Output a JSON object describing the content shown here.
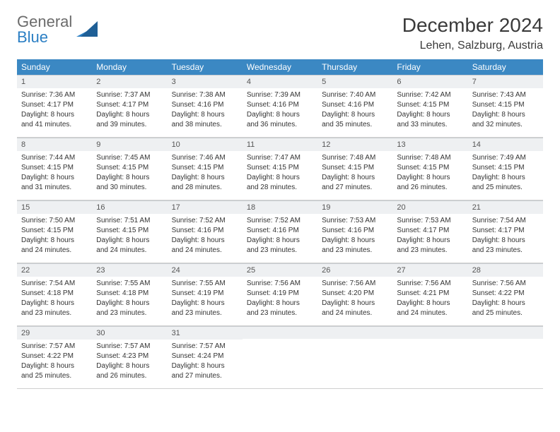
{
  "brand": {
    "line1": "General",
    "line2": "Blue"
  },
  "title": "December 2024",
  "location": "Lehen, Salzburg, Austria",
  "colors": {
    "header_bg": "#3b88c3",
    "header_text": "#ffffff",
    "daynum_bg": "#eef0f2",
    "text": "#333333",
    "logo_gray": "#6b6b6b",
    "logo_blue": "#2b7fc4",
    "rule": "#c9cdd1"
  },
  "dayHeaders": [
    "Sunday",
    "Monday",
    "Tuesday",
    "Wednesday",
    "Thursday",
    "Friday",
    "Saturday"
  ],
  "weeks": [
    [
      {
        "n": "1",
        "sunrise": "Sunrise: 7:36 AM",
        "sunset": "Sunset: 4:17 PM",
        "day1": "Daylight: 8 hours",
        "day2": "and 41 minutes."
      },
      {
        "n": "2",
        "sunrise": "Sunrise: 7:37 AM",
        "sunset": "Sunset: 4:17 PM",
        "day1": "Daylight: 8 hours",
        "day2": "and 39 minutes."
      },
      {
        "n": "3",
        "sunrise": "Sunrise: 7:38 AM",
        "sunset": "Sunset: 4:16 PM",
        "day1": "Daylight: 8 hours",
        "day2": "and 38 minutes."
      },
      {
        "n": "4",
        "sunrise": "Sunrise: 7:39 AM",
        "sunset": "Sunset: 4:16 PM",
        "day1": "Daylight: 8 hours",
        "day2": "and 36 minutes."
      },
      {
        "n": "5",
        "sunrise": "Sunrise: 7:40 AM",
        "sunset": "Sunset: 4:16 PM",
        "day1": "Daylight: 8 hours",
        "day2": "and 35 minutes."
      },
      {
        "n": "6",
        "sunrise": "Sunrise: 7:42 AM",
        "sunset": "Sunset: 4:15 PM",
        "day1": "Daylight: 8 hours",
        "day2": "and 33 minutes."
      },
      {
        "n": "7",
        "sunrise": "Sunrise: 7:43 AM",
        "sunset": "Sunset: 4:15 PM",
        "day1": "Daylight: 8 hours",
        "day2": "and 32 minutes."
      }
    ],
    [
      {
        "n": "8",
        "sunrise": "Sunrise: 7:44 AM",
        "sunset": "Sunset: 4:15 PM",
        "day1": "Daylight: 8 hours",
        "day2": "and 31 minutes."
      },
      {
        "n": "9",
        "sunrise": "Sunrise: 7:45 AM",
        "sunset": "Sunset: 4:15 PM",
        "day1": "Daylight: 8 hours",
        "day2": "and 30 minutes."
      },
      {
        "n": "10",
        "sunrise": "Sunrise: 7:46 AM",
        "sunset": "Sunset: 4:15 PM",
        "day1": "Daylight: 8 hours",
        "day2": "and 28 minutes."
      },
      {
        "n": "11",
        "sunrise": "Sunrise: 7:47 AM",
        "sunset": "Sunset: 4:15 PM",
        "day1": "Daylight: 8 hours",
        "day2": "and 28 minutes."
      },
      {
        "n": "12",
        "sunrise": "Sunrise: 7:48 AM",
        "sunset": "Sunset: 4:15 PM",
        "day1": "Daylight: 8 hours",
        "day2": "and 27 minutes."
      },
      {
        "n": "13",
        "sunrise": "Sunrise: 7:48 AM",
        "sunset": "Sunset: 4:15 PM",
        "day1": "Daylight: 8 hours",
        "day2": "and 26 minutes."
      },
      {
        "n": "14",
        "sunrise": "Sunrise: 7:49 AM",
        "sunset": "Sunset: 4:15 PM",
        "day1": "Daylight: 8 hours",
        "day2": "and 25 minutes."
      }
    ],
    [
      {
        "n": "15",
        "sunrise": "Sunrise: 7:50 AM",
        "sunset": "Sunset: 4:15 PM",
        "day1": "Daylight: 8 hours",
        "day2": "and 24 minutes."
      },
      {
        "n": "16",
        "sunrise": "Sunrise: 7:51 AM",
        "sunset": "Sunset: 4:15 PM",
        "day1": "Daylight: 8 hours",
        "day2": "and 24 minutes."
      },
      {
        "n": "17",
        "sunrise": "Sunrise: 7:52 AM",
        "sunset": "Sunset: 4:16 PM",
        "day1": "Daylight: 8 hours",
        "day2": "and 24 minutes."
      },
      {
        "n": "18",
        "sunrise": "Sunrise: 7:52 AM",
        "sunset": "Sunset: 4:16 PM",
        "day1": "Daylight: 8 hours",
        "day2": "and 23 minutes."
      },
      {
        "n": "19",
        "sunrise": "Sunrise: 7:53 AM",
        "sunset": "Sunset: 4:16 PM",
        "day1": "Daylight: 8 hours",
        "day2": "and 23 minutes."
      },
      {
        "n": "20",
        "sunrise": "Sunrise: 7:53 AM",
        "sunset": "Sunset: 4:17 PM",
        "day1": "Daylight: 8 hours",
        "day2": "and 23 minutes."
      },
      {
        "n": "21",
        "sunrise": "Sunrise: 7:54 AM",
        "sunset": "Sunset: 4:17 PM",
        "day1": "Daylight: 8 hours",
        "day2": "and 23 minutes."
      }
    ],
    [
      {
        "n": "22",
        "sunrise": "Sunrise: 7:54 AM",
        "sunset": "Sunset: 4:18 PM",
        "day1": "Daylight: 8 hours",
        "day2": "and 23 minutes."
      },
      {
        "n": "23",
        "sunrise": "Sunrise: 7:55 AM",
        "sunset": "Sunset: 4:18 PM",
        "day1": "Daylight: 8 hours",
        "day2": "and 23 minutes."
      },
      {
        "n": "24",
        "sunrise": "Sunrise: 7:55 AM",
        "sunset": "Sunset: 4:19 PM",
        "day1": "Daylight: 8 hours",
        "day2": "and 23 minutes."
      },
      {
        "n": "25",
        "sunrise": "Sunrise: 7:56 AM",
        "sunset": "Sunset: 4:19 PM",
        "day1": "Daylight: 8 hours",
        "day2": "and 23 minutes."
      },
      {
        "n": "26",
        "sunrise": "Sunrise: 7:56 AM",
        "sunset": "Sunset: 4:20 PM",
        "day1": "Daylight: 8 hours",
        "day2": "and 24 minutes."
      },
      {
        "n": "27",
        "sunrise": "Sunrise: 7:56 AM",
        "sunset": "Sunset: 4:21 PM",
        "day1": "Daylight: 8 hours",
        "day2": "and 24 minutes."
      },
      {
        "n": "28",
        "sunrise": "Sunrise: 7:56 AM",
        "sunset": "Sunset: 4:22 PM",
        "day1": "Daylight: 8 hours",
        "day2": "and 25 minutes."
      }
    ],
    [
      {
        "n": "29",
        "sunrise": "Sunrise: 7:57 AM",
        "sunset": "Sunset: 4:22 PM",
        "day1": "Daylight: 8 hours",
        "day2": "and 25 minutes."
      },
      {
        "n": "30",
        "sunrise": "Sunrise: 7:57 AM",
        "sunset": "Sunset: 4:23 PM",
        "day1": "Daylight: 8 hours",
        "day2": "and 26 minutes."
      },
      {
        "n": "31",
        "sunrise": "Sunrise: 7:57 AM",
        "sunset": "Sunset: 4:24 PM",
        "day1": "Daylight: 8 hours",
        "day2": "and 27 minutes."
      },
      {
        "empty": true
      },
      {
        "empty": true
      },
      {
        "empty": true
      },
      {
        "empty": true
      }
    ]
  ]
}
